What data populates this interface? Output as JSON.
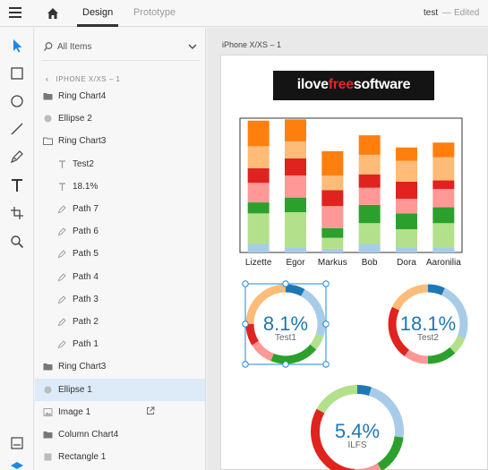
{
  "header": {
    "tabs": [
      {
        "label": "Design",
        "active": true
      },
      {
        "label": "Prototype",
        "active": false
      }
    ],
    "document_name": "test",
    "separator": "—",
    "status": "Edited"
  },
  "layers": {
    "search_label": "All Items",
    "breadcrumb": "IPHONE X/XS – 1",
    "items": [
      {
        "label": "Ring Chart4",
        "icon": "folder-icon",
        "indent": 0,
        "selected": false
      },
      {
        "label": "Ellipse 2",
        "icon": "ellipse-icon",
        "indent": 0,
        "selected": false
      },
      {
        "label": "Ring Chart3",
        "icon": "folder-open-icon",
        "indent": 0,
        "selected": false
      },
      {
        "label": "Test2",
        "icon": "text-icon",
        "indent": 1,
        "selected": false
      },
      {
        "label": "18.1%",
        "icon": "text-icon",
        "indent": 1,
        "selected": false
      },
      {
        "label": "Path 7",
        "icon": "pen-icon",
        "indent": 1,
        "selected": false
      },
      {
        "label": "Path 6",
        "icon": "pen-icon",
        "indent": 1,
        "selected": false
      },
      {
        "label": "Path 5",
        "icon": "pen-icon",
        "indent": 1,
        "selected": false
      },
      {
        "label": "Path 4",
        "icon": "pen-icon",
        "indent": 1,
        "selected": false
      },
      {
        "label": "Path 3",
        "icon": "pen-icon",
        "indent": 1,
        "selected": false
      },
      {
        "label": "Path 2",
        "icon": "pen-icon",
        "indent": 1,
        "selected": false
      },
      {
        "label": "Path 1",
        "icon": "pen-icon",
        "indent": 1,
        "selected": false
      },
      {
        "label": "Ring Chart3",
        "icon": "folder-icon",
        "indent": 0,
        "selected": false
      },
      {
        "label": "Ellipse 1",
        "icon": "ellipse-icon",
        "indent": 0,
        "selected": true
      },
      {
        "label": "Image 1",
        "icon": "image-icon",
        "indent": 0,
        "selected": false,
        "link": true
      },
      {
        "label": "Column Chart4",
        "icon": "folder-icon",
        "indent": 0,
        "selected": false
      },
      {
        "label": "Rectangle 1",
        "icon": "rectangle-icon",
        "indent": 0,
        "selected": false
      }
    ]
  },
  "canvas": {
    "artboard_label": "iPhone X/XS – 1",
    "logo": {
      "part1": "ilove",
      "part2": "free",
      "part3": "software"
    }
  },
  "colors": {
    "accent": "#1e88e5",
    "selection": "#dcebf7",
    "segments": [
      "#a8cce8",
      "#b3e08a",
      "#2ca02c",
      "#ff9896",
      "#e0231f",
      "#ffbb78",
      "#ff7f0e",
      "#1f77b4"
    ]
  },
  "chart_data": [
    {
      "type": "bar",
      "stacked": true,
      "categories": [
        "Lizette",
        "Egor",
        "Markus",
        "Bob",
        "Dora",
        "Aaronilia"
      ],
      "series": [
        {
          "color": "#a8cce8",
          "values": [
            7,
            4,
            3,
            7,
            4,
            4
          ]
        },
        {
          "color": "#b3e08a",
          "values": [
            25,
            29,
            9,
            17,
            15,
            20
          ]
        },
        {
          "color": "#2ca02c",
          "values": [
            9,
            12,
            8,
            15,
            13,
            13
          ]
        },
        {
          "color": "#ff9896",
          "values": [
            16,
            18,
            18,
            14,
            12,
            15
          ]
        },
        {
          "color": "#e0231f",
          "values": [
            12,
            14,
            13,
            11,
            14,
            7
          ]
        },
        {
          "color": "#ffbb78",
          "values": [
            18,
            14,
            12,
            16,
            17,
            19
          ]
        },
        {
          "color": "#ff7f0e",
          "values": [
            21,
            18,
            20,
            16,
            11,
            12
          ]
        }
      ],
      "ylim": [
        0,
        110
      ],
      "grid": false
    },
    {
      "type": "pie",
      "donut": true,
      "center_value": "8.1%",
      "center_label": "Test1",
      "slices": [
        {
          "color": "#1f77b4",
          "value": 8
        },
        {
          "color": "#a8cce8",
          "value": 22
        },
        {
          "color": "#b3e08a",
          "value": 6
        },
        {
          "color": "#2ca02c",
          "value": 20
        },
        {
          "color": "#ff9896",
          "value": 10
        },
        {
          "color": "#e0231f",
          "value": 9
        },
        {
          "color": "#ffbb78",
          "value": 25
        }
      ]
    },
    {
      "type": "pie",
      "donut": true,
      "center_value": "18.1%",
      "center_label": "Test2",
      "slices": [
        {
          "color": "#1f77b4",
          "value": 7
        },
        {
          "color": "#a8cce8",
          "value": 24
        },
        {
          "color": "#b3e08a",
          "value": 7
        },
        {
          "color": "#2ca02c",
          "value": 12
        },
        {
          "color": "#ff9896",
          "value": 10
        },
        {
          "color": "#e0231f",
          "value": 22
        },
        {
          "color": "#ffbb78",
          "value": 18
        }
      ]
    },
    {
      "type": "pie",
      "donut": true,
      "center_value": "5.4%",
      "center_label": "ILFS",
      "slices": [
        {
          "color": "#1f77b4",
          "value": 5
        },
        {
          "color": "#a8cce8",
          "value": 22
        },
        {
          "color": "#2ca02c",
          "value": 14
        },
        {
          "color": "#ff9896",
          "value": 10
        },
        {
          "color": "#e0231f",
          "value": 32
        },
        {
          "color": "#b3e08a",
          "value": 17
        }
      ]
    }
  ]
}
